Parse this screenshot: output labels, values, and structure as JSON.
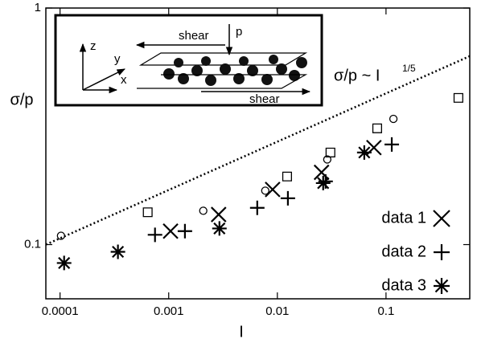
{
  "chart_data": {
    "type": "scatter",
    "xlabel": "I",
    "ylabel": "σ/p",
    "xscale": "log",
    "yscale": "log",
    "xlim": [
      7.4e-05,
      0.59
    ],
    "ylim": [
      0.059,
      1
    ],
    "xticks": [
      0.0001,
      0.001,
      0.01,
      0.1
    ],
    "yticks": [
      0.1,
      1
    ],
    "grid": false,
    "legend": "lower right",
    "series": [
      {
        "name": "data 1",
        "marker": "x",
        "color": "#000000",
        "x": [
          0.00104,
          0.00288,
          0.00904,
          0.0255,
          0.0774
        ],
        "values": [
          0.114,
          0.134,
          0.171,
          0.202,
          0.257
        ]
      },
      {
        "name": "data 2",
        "marker": "plus",
        "color": "#000000",
        "x": [
          0.000748,
          0.00141,
          0.00653,
          0.0125,
          0.0278,
          0.113
        ],
        "values": [
          0.11,
          0.114,
          0.143,
          0.157,
          0.185,
          0.265
        ]
      },
      {
        "name": "data 3",
        "marker": "asterisk",
        "color": "#000000",
        "x": [
          0.000109,
          0.000341,
          0.00293,
          0.0264,
          0.0631
        ],
        "values": [
          0.0836,
          0.0932,
          0.117,
          0.182,
          0.245
        ]
      },
      {
        "marker": "square",
        "color": "#000000",
        "x": [
          0.000641,
          0.0123,
          0.0308,
          0.083,
          0.464
        ],
        "values": [
          0.137,
          0.194,
          0.245,
          0.31,
          0.417
        ]
      },
      {
        "marker": "circle",
        "color": "#000000",
        "x": [
          0.000102,
          0.00208,
          0.00774,
          0.0288,
          0.117
        ],
        "values": [
          0.109,
          0.139,
          0.169,
          0.229,
          0.34
        ]
      }
    ],
    "trend_line": {
      "style": "dotted",
      "color": "#000000",
      "x": [
        7.4e-05,
        0.59
      ],
      "values": [
        0.1,
        0.626
      ]
    },
    "annotation": "σ/p ~ I",
    "annotation_superscript": "1/5",
    "inset": {
      "shear_top": "shear",
      "pressure": "p",
      "shear_bottom": "shear",
      "axis_z": "z",
      "axis_y": "y",
      "axis_x": "x"
    }
  }
}
